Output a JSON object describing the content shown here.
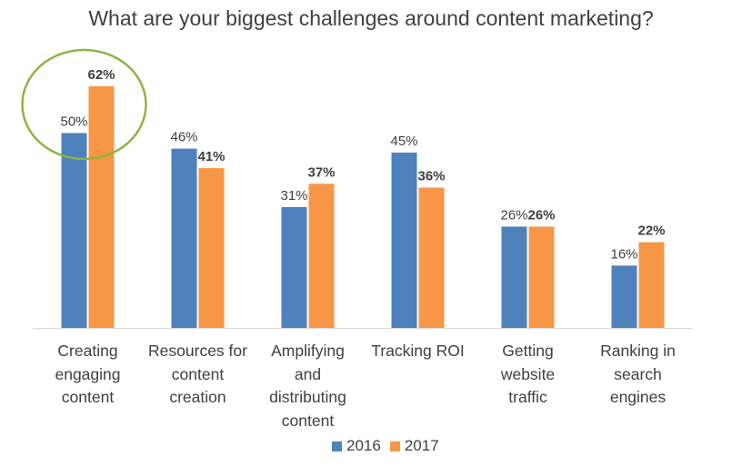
{
  "chart_data": {
    "type": "bar",
    "title": "What are your biggest challenges around content marketing?",
    "categories": [
      "Creating\nengaging\ncontent",
      "Resources for\ncontent\ncreation",
      "Amplifying\nand\ndistributing\ncontent",
      "Tracking ROI",
      "Getting\nwebsite\ntraffic",
      "Ranking in\nsearch\nengines"
    ],
    "series": [
      {
        "name": "2016",
        "color": "#4F81BD",
        "values": [
          50,
          46,
          31,
          45,
          26,
          16
        ],
        "labels": [
          "50%",
          "46%",
          "31%",
          "45%",
          "26%",
          "16%"
        ]
      },
      {
        "name": "2017",
        "color": "#F79646",
        "values": [
          62,
          41,
          37,
          36,
          26,
          22
        ],
        "labels": [
          "62%",
          "41%",
          "37%",
          "36%",
          "26%",
          "22%"
        ]
      }
    ],
    "xlabel": "",
    "ylabel": "",
    "ylim": [
      0,
      62
    ],
    "grid": false,
    "legend": "bottom",
    "annotations": [
      {
        "type": "circle",
        "around_category": "Creating\nengaging\ncontent",
        "color": "#8DB543"
      }
    ]
  }
}
